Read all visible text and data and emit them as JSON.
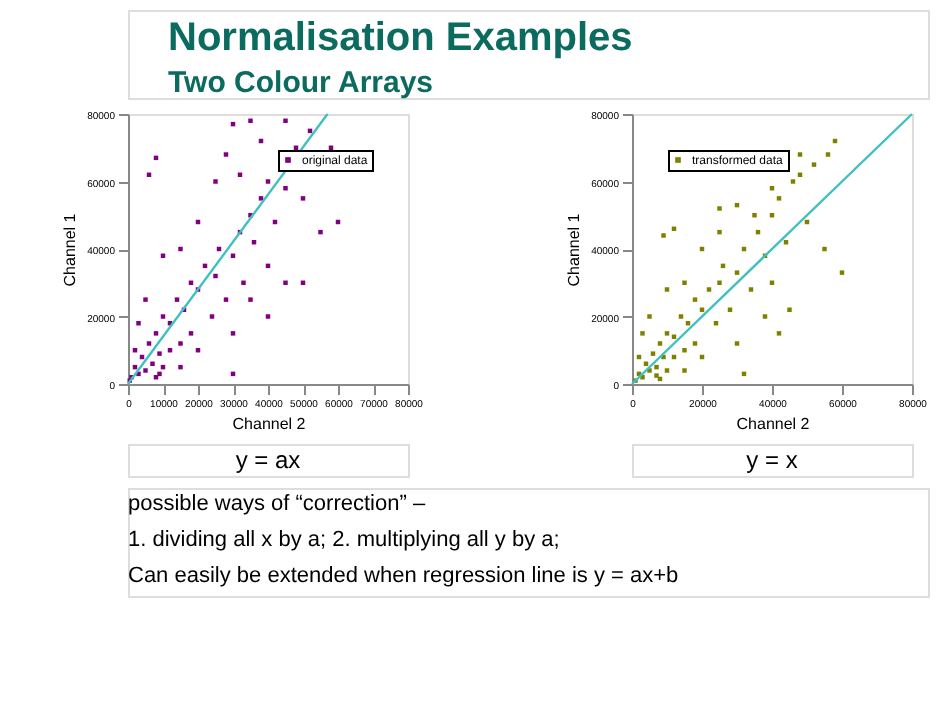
{
  "chart_data": [
    {
      "type": "scatter",
      "title": "Normalisation Examples",
      "subtitle": "Two Colour Arrays",
      "xlabel": "Channel 2",
      "ylabel": "Channel 1",
      "xlim": [
        0,
        80000
      ],
      "ylim": [
        0,
        80000
      ],
      "xticks": [
        0,
        10000,
        20000,
        30000,
        40000,
        50000,
        60000,
        70000,
        80000
      ],
      "yticks": [
        0,
        20000,
        40000,
        60000,
        80000
      ],
      "legend": "top right",
      "grid": false,
      "annotations": [
        "y = ax"
      ],
      "series": [
        {
          "name": "original data",
          "color": "#800080",
          "marker": "square",
          "x": [
            1000,
            2000,
            3000,
            4000,
            5000,
            6000,
            7000,
            8000,
            9000,
            10000,
            10000,
            12000,
            12000,
            14000,
            15000,
            16000,
            18000,
            18000,
            20000,
            20000,
            22000,
            24000,
            25000,
            26000,
            28000,
            30000,
            30000,
            32000,
            33000,
            35000,
            36000,
            38000,
            40000,
            40000,
            42000,
            45000,
            45000,
            48000,
            50000,
            52000,
            55000,
            58000,
            60000,
            50000,
            45000,
            30000,
            35000,
            6000,
            8000,
            15000,
            10000,
            20000,
            25000,
            28000,
            32000,
            38000,
            40000,
            35000,
            30000,
            3000,
            5000,
            2000,
            9000,
            500,
            8000,
            15000
          ],
          "values": [
            2000,
            5000,
            3000,
            8000,
            4000,
            12000,
            6000,
            15000,
            9000,
            20000,
            5000,
            18000,
            10000,
            25000,
            12000,
            22000,
            30000,
            15000,
            28000,
            10000,
            35000,
            20000,
            32000,
            40000,
            25000,
            38000,
            15000,
            45000,
            30000,
            50000,
            42000,
            55000,
            35000,
            60000,
            48000,
            58000,
            30000,
            70000,
            55000,
            75000,
            45000,
            70000,
            48000,
            30000,
            78000,
            77000,
            78000,
            62000,
            67000,
            40000,
            38000,
            48000,
            60000,
            68000,
            62000,
            72000,
            20000,
            25000,
            3000,
            18000,
            25000,
            10000,
            3000,
            1000,
            2000,
            5000
          ]
        },
        {
          "color": "#40c0c0",
          "type": "line",
          "x": [
            0,
            57000
          ],
          "values": [
            0,
            80000
          ]
        }
      ]
    },
    {
      "type": "scatter",
      "xlabel": "Channel 2",
      "ylabel": "Channel 1",
      "xlim": [
        0,
        80000
      ],
      "ylim": [
        0,
        80000
      ],
      "xticks": [
        0,
        20000,
        40000,
        60000,
        80000
      ],
      "yticks": [
        0,
        20000,
        40000,
        60000,
        80000
      ],
      "legend": "top left",
      "grid": false,
      "annotations": [
        "y = x",
        "possible ways of “correction” –",
        "1.    dividing all x by a;   2. multiplying all y by a;",
        "Can easily be extended when regression line is y = ax+b"
      ],
      "series": [
        {
          "name": "transformed data",
          "color": "#808000",
          "marker": "square",
          "x": [
            1000,
            2000,
            3000,
            4000,
            5000,
            6000,
            7000,
            8000,
            9000,
            10000,
            10000,
            12000,
            12000,
            14000,
            15000,
            16000,
            18000,
            18000,
            20000,
            20000,
            22000,
            24000,
            25000,
            26000,
            28000,
            30000,
            30000,
            32000,
            34000,
            36000,
            38000,
            40000,
            40000,
            42000,
            44000,
            46000,
            45000,
            48000,
            50000,
            52000,
            55000,
            56000,
            58000,
            60000,
            48000,
            25000,
            30000,
            9000,
            12000,
            15000,
            10000,
            20000,
            25000,
            35000,
            40000,
            42000,
            38000,
            32000,
            3000,
            5000,
            2000,
            7000,
            8000,
            15000
          ],
          "values": [
            1000,
            3000,
            2000,
            6000,
            4000,
            9000,
            5000,
            12000,
            8000,
            15000,
            4000,
            14000,
            8000,
            20000,
            10000,
            18000,
            25000,
            12000,
            22000,
            8000,
            28000,
            18000,
            30000,
            35000,
            22000,
            33000,
            12000,
            40000,
            28000,
            45000,
            38000,
            50000,
            30000,
            55000,
            42000,
            60000,
            22000,
            62000,
            48000,
            65000,
            40000,
            68000,
            72000,
            33000,
            68000,
            52000,
            53000,
            44000,
            46000,
            30000,
            28000,
            40000,
            45000,
            50000,
            58000,
            15000,
            20000,
            3000,
            15000,
            20000,
            8000,
            2500,
            1500,
            4000
          ]
        },
        {
          "color": "#40c0c0",
          "type": "line",
          "x": [
            0,
            80000
          ],
          "values": [
            0,
            80000
          ]
        }
      ]
    }
  ]
}
